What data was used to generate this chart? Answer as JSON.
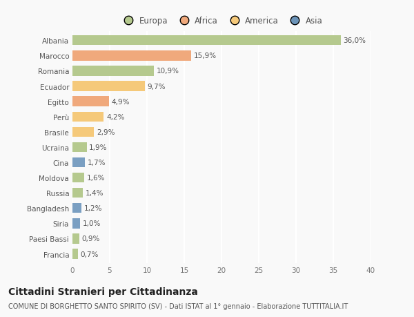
{
  "countries": [
    "Albania",
    "Marocco",
    "Romania",
    "Ecuador",
    "Egitto",
    "Perù",
    "Brasile",
    "Ucraina",
    "Cina",
    "Moldova",
    "Russia",
    "Bangladesh",
    "Siria",
    "Paesi Bassi",
    "Francia"
  ],
  "values": [
    36.0,
    15.9,
    10.9,
    9.7,
    4.9,
    4.2,
    2.9,
    1.9,
    1.7,
    1.6,
    1.4,
    1.2,
    1.0,
    0.9,
    0.7
  ],
  "labels": [
    "36,0%",
    "15,9%",
    "10,9%",
    "9,7%",
    "4,9%",
    "4,2%",
    "2,9%",
    "1,9%",
    "1,7%",
    "1,6%",
    "1,4%",
    "1,2%",
    "1,0%",
    "0,9%",
    "0,7%"
  ],
  "colors": [
    "#b5c98e",
    "#f0a97c",
    "#b5c98e",
    "#f5c97a",
    "#f0a97c",
    "#f5c97a",
    "#f5c97a",
    "#b5c98e",
    "#7a9fc2",
    "#b5c98e",
    "#b5c98e",
    "#7a9fc2",
    "#7a9fc2",
    "#b5c98e",
    "#b5c98e"
  ],
  "legend_labels": [
    "Europa",
    "Africa",
    "America",
    "Asia"
  ],
  "legend_colors": [
    "#b5c98e",
    "#f0a97c",
    "#f5c97a",
    "#6b93b8"
  ],
  "xlim": [
    0,
    40
  ],
  "xticks": [
    0,
    5,
    10,
    15,
    20,
    25,
    30,
    35,
    40
  ],
  "title": "Cittadini Stranieri per Cittadinanza",
  "subtitle": "COMUNE DI BORGHETTO SANTO SPIRITO (SV) - Dati ISTAT al 1° gennaio - Elaborazione TUTTITALIA.IT",
  "bg_color": "#f9f9f9",
  "grid_color": "#ffffff",
  "bar_height": 0.65,
  "title_fontsize": 10,
  "subtitle_fontsize": 7,
  "label_fontsize": 7.5,
  "tick_fontsize": 7.5,
  "legend_fontsize": 8.5
}
